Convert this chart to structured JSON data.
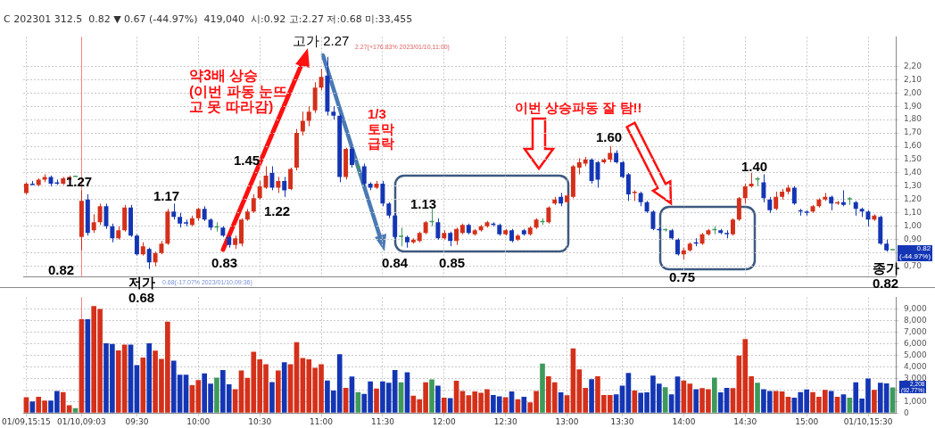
{
  "chart_data": [
    {
      "type": "candlestick",
      "title": "C 202301 312.5  0.82 ▼ 0.67 (-44.97%)  419,040  시:0.92 고:2.27 저:0.68 미:33,455",
      "categories": [
        "01/09,15:15",
        null,
        null,
        null,
        null,
        null,
        null,
        null,
        null,
        "01/10,09:03",
        null,
        null,
        null,
        null,
        null,
        null,
        null,
        null,
        "09:30",
        null,
        null,
        null,
        null,
        null,
        null,
        null,
        null,
        null,
        "10:00",
        null,
        null,
        null,
        null,
        null,
        null,
        null,
        null,
        null,
        "10:30",
        null,
        null,
        null,
        null,
        null,
        null,
        null,
        null,
        null,
        "11:00",
        null,
        null,
        null,
        null,
        null,
        null,
        null,
        null,
        null,
        "11:30",
        null,
        null,
        null,
        null,
        null,
        null,
        null,
        null,
        null,
        "12:00",
        null,
        null,
        null,
        null,
        null,
        null,
        null,
        null,
        null,
        "12:30",
        null,
        null,
        null,
        null,
        null,
        null,
        null,
        null,
        null,
        "13:00",
        null,
        null,
        null,
        null,
        null,
        null,
        null,
        null,
        "13:30",
        null,
        null,
        null,
        null,
        null,
        null,
        null,
        null,
        null,
        "14:00",
        null,
        null,
        null,
        null,
        null,
        null,
        null,
        null,
        null,
        "14:30",
        null,
        null,
        null,
        null,
        null,
        null,
        null,
        null,
        null,
        "15:00",
        null,
        null,
        null,
        null,
        null,
        null,
        null,
        null,
        null,
        "01/10,15:30",
        null,
        null,
        null,
        null
      ],
      "ohlc": [
        [
          1.25,
          1.33,
          1.24,
          1.32
        ],
        [
          1.32,
          1.34,
          1.31,
          1.31
        ],
        [
          1.31,
          1.36,
          1.3,
          1.35
        ],
        [
          1.35,
          1.39,
          1.33,
          1.37
        ],
        [
          1.37,
          1.38,
          1.3,
          1.32
        ],
        [
          1.33,
          1.35,
          1.31,
          1.32
        ],
        [
          1.32,
          1.37,
          1.31,
          1.36
        ],
        [
          1.35,
          1.38,
          1.34,
          1.37
        ],
        [
          1.37,
          1.37,
          1.37,
          1.37
        ],
        [
          0.92,
          1.27,
          0.82,
          1.19
        ],
        [
          1.2,
          1.24,
          0.93,
          0.95
        ],
        [
          0.97,
          1.09,
          0.95,
          1.03
        ],
        [
          1.03,
          1.17,
          1.01,
          1.15
        ],
        [
          1.15,
          1.17,
          0.98,
          1.0
        ],
        [
          1.0,
          1.02,
          0.88,
          0.91
        ],
        [
          0.91,
          1.0,
          0.9,
          0.97
        ],
        [
          0.97,
          1.16,
          0.96,
          1.14
        ],
        [
          1.14,
          1.16,
          0.92,
          0.93
        ],
        [
          0.93,
          0.94,
          0.78,
          0.79
        ],
        [
          0.79,
          0.88,
          0.78,
          0.85
        ],
        [
          0.83,
          0.84,
          0.68,
          0.73
        ],
        [
          0.73,
          0.81,
          0.7,
          0.8
        ],
        [
          0.8,
          0.89,
          0.79,
          0.87
        ],
        [
          0.87,
          1.13,
          0.86,
          1.11
        ],
        [
          1.11,
          1.17,
          1.05,
          1.07
        ],
        [
          1.07,
          1.1,
          0.99,
          1.02
        ],
        [
          1.03,
          1.05,
          1.0,
          1.02
        ],
        [
          1.01,
          1.08,
          1.0,
          1.06
        ],
        [
          1.06,
          1.14,
          1.04,
          1.13
        ],
        [
          1.13,
          1.15,
          1.04,
          1.05
        ],
        [
          1.05,
          1.06,
          0.97,
          0.99
        ],
        [
          0.99,
          1.03,
          0.96,
          0.99
        ],
        [
          0.99,
          1.0,
          0.92,
          0.93
        ],
        [
          0.92,
          0.93,
          0.84,
          0.86
        ],
        [
          0.86,
          0.93,
          0.83,
          0.91
        ],
        [
          0.87,
          1.06,
          0.85,
          1.05
        ],
        [
          1.05,
          1.13,
          1.04,
          1.11
        ],
        [
          1.11,
          1.24,
          1.1,
          1.21
        ],
        [
          1.21,
          1.34,
          1.2,
          1.3
        ],
        [
          1.29,
          1.45,
          1.28,
          1.38
        ],
        [
          1.4,
          1.45,
          1.27,
          1.29
        ],
        [
          1.29,
          1.37,
          1.25,
          1.34
        ],
        [
          1.34,
          1.37,
          1.22,
          1.27
        ],
        [
          1.28,
          1.44,
          1.27,
          1.43
        ],
        [
          1.44,
          1.73,
          1.42,
          1.7
        ],
        [
          1.71,
          1.86,
          1.68,
          1.79
        ],
        [
          1.79,
          1.9,
          1.75,
          1.86
        ],
        [
          1.87,
          2.08,
          1.85,
          2.04
        ],
        [
          2.04,
          2.18,
          2.02,
          2.12
        ],
        [
          2.13,
          2.27,
          1.83,
          1.86
        ],
        [
          1.86,
          1.9,
          1.8,
          1.83
        ],
        [
          1.83,
          1.84,
          1.33,
          1.37
        ],
        [
          1.37,
          1.59,
          1.35,
          1.58
        ],
        [
          1.58,
          1.6,
          1.44,
          1.46
        ],
        [
          1.44,
          1.48,
          1.4,
          1.44
        ],
        [
          1.45,
          1.47,
          1.3,
          1.32
        ],
        [
          1.32,
          1.33,
          1.27,
          1.29
        ],
        [
          1.29,
          1.34,
          1.28,
          1.32
        ],
        [
          1.32,
          1.34,
          1.15,
          1.17
        ],
        [
          1.17,
          1.18,
          1.06,
          1.08
        ],
        [
          1.08,
          1.1,
          0.9,
          0.92
        ],
        [
          0.92,
          0.99,
          0.85,
          0.92
        ],
        [
          0.92,
          0.93,
          0.84,
          0.88
        ],
        [
          0.88,
          0.91,
          0.87,
          0.9
        ],
        [
          0.89,
          0.96,
          0.88,
          0.95
        ],
        [
          0.95,
          1.04,
          0.94,
          1.03
        ],
        [
          1.03,
          1.13,
          1.0,
          1.03
        ],
        [
          1.03,
          1.06,
          0.9,
          0.91
        ],
        [
          0.91,
          0.97,
          0.9,
          0.95
        ],
        [
          0.95,
          0.96,
          0.85,
          0.89
        ],
        [
          0.89,
          0.99,
          0.86,
          0.98
        ],
        [
          0.95,
          1.02,
          0.94,
          1.01
        ],
        [
          1.01,
          1.02,
          0.94,
          0.95
        ],
        [
          0.94,
          0.98,
          0.93,
          0.97
        ],
        [
          0.97,
          1.01,
          0.96,
          1.0
        ],
        [
          1.0,
          1.04,
          0.99,
          1.03
        ],
        [
          1.02,
          1.03,
          1.0,
          1.01
        ],
        [
          1.01,
          1.02,
          0.93,
          0.94
        ],
        [
          0.94,
          0.98,
          0.93,
          0.97
        ],
        [
          0.97,
          0.98,
          0.88,
          0.89
        ],
        [
          0.9,
          0.94,
          0.89,
          0.93
        ],
        [
          0.97,
          0.98,
          0.93,
          0.94
        ],
        [
          0.94,
          1.0,
          0.93,
          0.99
        ],
        [
          0.99,
          1.06,
          0.98,
          1.05
        ],
        [
          1.03,
          1.06,
          1.01,
          1.03
        ],
        [
          1.03,
          1.15,
          1.02,
          1.14
        ],
        [
          1.17,
          1.22,
          1.16,
          1.2
        ],
        [
          1.22,
          1.25,
          1.15,
          1.17
        ],
        [
          1.18,
          1.25,
          1.17,
          1.23
        ],
        [
          1.22,
          1.46,
          1.21,
          1.45
        ],
        [
          1.44,
          1.51,
          1.39,
          1.48
        ],
        [
          1.47,
          1.52,
          1.45,
          1.5
        ],
        [
          1.5,
          1.51,
          1.32,
          1.34
        ],
        [
          1.48,
          1.49,
          1.29,
          1.35
        ],
        [
          1.48,
          1.51,
          1.47,
          1.5
        ],
        [
          1.5,
          1.6,
          1.48,
          1.55
        ],
        [
          1.55,
          1.57,
          1.47,
          1.48
        ],
        [
          1.48,
          1.49,
          1.36,
          1.37
        ],
        [
          1.39,
          1.4,
          1.19,
          1.24
        ],
        [
          1.25,
          1.27,
          1.19,
          1.26
        ],
        [
          1.25,
          1.26,
          1.15,
          1.18
        ],
        [
          1.18,
          1.19,
          1.1,
          1.11
        ],
        [
          1.11,
          1.12,
          0.97,
          0.98
        ],
        [
          0.98,
          0.99,
          0.95,
          0.97
        ],
        [
          0.97,
          0.98,
          0.96,
          0.97
        ],
        [
          0.97,
          0.98,
          0.9,
          0.91
        ],
        [
          0.9,
          0.91,
          0.78,
          0.79
        ],
        [
          0.79,
          0.84,
          0.75,
          0.82
        ],
        [
          0.82,
          0.88,
          0.81,
          0.87
        ],
        [
          0.88,
          0.91,
          0.85,
          0.87
        ],
        [
          0.87,
          0.95,
          0.86,
          0.94
        ],
        [
          0.94,
          0.98,
          0.93,
          0.97
        ],
        [
          0.97,
          1.0,
          0.94,
          0.97
        ],
        [
          0.97,
          0.98,
          0.94,
          0.95
        ],
        [
          0.95,
          0.97,
          0.91,
          0.94
        ],
        [
          0.94,
          1.06,
          0.93,
          1.05
        ],
        [
          1.05,
          1.22,
          1.04,
          1.21
        ],
        [
          1.21,
          1.32,
          1.17,
          1.3
        ],
        [
          1.3,
          1.4,
          1.29,
          1.32
        ],
        [
          1.35,
          1.37,
          1.3,
          1.35
        ],
        [
          1.33,
          1.39,
          1.18,
          1.21
        ],
        [
          1.2,
          1.22,
          1.1,
          1.12
        ],
        [
          1.13,
          1.26,
          1.12,
          1.22
        ],
        [
          1.22,
          1.28,
          1.2,
          1.26
        ],
        [
          1.26,
          1.31,
          1.24,
          1.29
        ],
        [
          1.29,
          1.3,
          1.16,
          1.17
        ],
        [
          1.12,
          1.13,
          1.08,
          1.11
        ],
        [
          1.11,
          1.12,
          1.08,
          1.1
        ],
        [
          1.11,
          1.16,
          1.1,
          1.15
        ],
        [
          1.15,
          1.21,
          1.14,
          1.2
        ],
        [
          1.2,
          1.25,
          1.19,
          1.22
        ],
        [
          1.22,
          1.23,
          1.12,
          1.17
        ],
        [
          1.17,
          1.19,
          1.16,
          1.18
        ],
        [
          1.18,
          1.27,
          1.15,
          1.16
        ],
        [
          1.2,
          1.22,
          1.16,
          1.2
        ],
        [
          1.18,
          1.19,
          1.08,
          1.13
        ],
        [
          1.13,
          1.14,
          1.07,
          1.11
        ],
        [
          1.11,
          1.12,
          1.0,
          1.05
        ],
        [
          1.05,
          1.09,
          1.04,
          1.08
        ],
        [
          1.07,
          1.08,
          0.86,
          0.87
        ],
        [
          0.87,
          0.9,
          0.81,
          0.82
        ],
        [
          0.82,
          0.82,
          0.82,
          0.82
        ]
      ],
      "colors": [
        "#d4301a",
        "#1436b4",
        "#d4301a",
        "#d4301a",
        "#1436b4",
        "#1436b4",
        "#d4301a",
        "#d4301a",
        "#3e9a5a",
        "#d4301a",
        "#1436b4",
        "#d4301a",
        "#d4301a",
        "#1436b4",
        "#1436b4",
        "#d4301a",
        "#d4301a",
        "#1436b4",
        "#1436b4",
        "#d4301a",
        "#1436b4",
        "#d4301a",
        "#d4301a",
        "#d4301a",
        "#1436b4",
        "#1436b4",
        "#1436b4",
        "#d4301a",
        "#d4301a",
        "#1436b4",
        "#1436b4",
        "#3e9a5a",
        "#1436b4",
        "#1436b4",
        "#d4301a",
        "#d4301a",
        "#d4301a",
        "#d4301a",
        "#d4301a",
        "#d4301a",
        "#1436b4",
        "#d4301a",
        "#1436b4",
        "#d4301a",
        "#d4301a",
        "#d4301a",
        "#d4301a",
        "#d4301a",
        "#d4301a",
        "#1436b4",
        "#1436b4",
        "#1436b4",
        "#d4301a",
        "#1436b4",
        "#3e9a5a",
        "#1436b4",
        "#1436b4",
        "#d4301a",
        "#1436b4",
        "#1436b4",
        "#1436b4",
        "#3e9a5a",
        "#1436b4",
        "#d4301a",
        "#d4301a",
        "#d4301a",
        "#3e9a5a",
        "#1436b4",
        "#d4301a",
        "#1436b4",
        "#d4301a",
        "#d4301a",
        "#1436b4",
        "#d4301a",
        "#d4301a",
        "#d4301a",
        "#1436b4",
        "#1436b4",
        "#d4301a",
        "#1436b4",
        "#d4301a",
        "#1436b4",
        "#d4301a",
        "#d4301a",
        "#3e9a5a",
        "#d4301a",
        "#d4301a",
        "#1436b4",
        "#d4301a",
        "#d4301a",
        "#d4301a",
        "#d4301a",
        "#1436b4",
        "#1436b4",
        "#d4301a",
        "#d4301a",
        "#1436b4",
        "#1436b4",
        "#1436b4",
        "#d4301a",
        "#1436b4",
        "#1436b4",
        "#1436b4",
        "#1436b4",
        "#3e9a5a",
        "#1436b4",
        "#1436b4",
        "#d4301a",
        "#d4301a",
        "#1436b4",
        "#d4301a",
        "#d4301a",
        "#3e9a5a",
        "#1436b4",
        "#1436b4",
        "#d4301a",
        "#d4301a",
        "#d4301a",
        "#d4301a",
        "#3e9a5a",
        "#1436b4",
        "#1436b4",
        "#d4301a",
        "#d4301a",
        "#d4301a",
        "#1436b4",
        "#1436b4",
        "#1436b4",
        "#d4301a",
        "#d4301a",
        "#d4301a",
        "#1436b4",
        "#d4301a",
        "#1436b4",
        "#3e9a5a",
        "#1436b4",
        "#1436b4",
        "#1436b4",
        "#d4301a",
        "#1436b4",
        "#1436b4",
        "#3e9a5a"
      ],
      "ylim": [
        0.62,
        2.42
      ],
      "yticks": [
        {
          "value": 0.7,
          "label": "0,70"
        },
        {
          "value": 0.8,
          "label": null
        },
        {
          "value": 0.9,
          "label": "0,90"
        },
        {
          "value": 1.0,
          "label": "1,00"
        },
        {
          "value": 1.1,
          "label": "1,10"
        },
        {
          "value": 1.2,
          "label": "1,20"
        },
        {
          "value": 1.3,
          "label": "1,30"
        },
        {
          "value": 1.4,
          "label": "1,40"
        },
        {
          "value": 1.5,
          "label": "1,50"
        },
        {
          "value": 1.6,
          "label": "1,60"
        },
        {
          "value": 1.7,
          "label": "1,70"
        },
        {
          "value": 1.8,
          "label": "1,80"
        },
        {
          "value": 1.9,
          "label": "1,90"
        },
        {
          "value": 2.0,
          "label": "2,00"
        },
        {
          "value": 2.1,
          "label": "2,10"
        },
        {
          "value": 2.2,
          "label": "2,20"
        }
      ],
      "grid": true,
      "tick_labels": "y",
      "ref_lines": [
        {
          "axis": "x",
          "value": "01/10,09:03",
          "color": "#ff7b7b"
        }
      ],
      "annotations": [
        "고가 2.27",
        "2.27(+176.83% 2023/01/10,11:00)",
        "약3배 상승\n(이번 파동 눈뜨\n고 못 따라감)",
        "1/3\n토막\n급락",
        "이번 상승파동 잘 탐!!",
        "1.27",
        "1.17",
        "1.45",
        "1.22",
        "1.13",
        "1.60",
        "1.40",
        "0.82",
        "0.83",
        "0.84",
        "0.85",
        "0.75",
        "저가\n0.68",
        "0.68(-17.07% 2023/01/10,09:36)",
        "종가\n0.82",
        "0.82\n(-44.97%)"
      ]
    },
    {
      "type": "bar",
      "categories": [
        "01/09,15:15",
        null,
        null,
        null,
        null,
        null,
        null,
        null,
        null,
        "01/10,09:03",
        null,
        null,
        null,
        null,
        null,
        null,
        null,
        null,
        "09:30",
        null,
        null,
        null,
        null,
        null,
        null,
        null,
        null,
        null,
        "10:00",
        null,
        null,
        null,
        null,
        null,
        null,
        null,
        null,
        null,
        "10:30",
        null,
        null,
        null,
        null,
        null,
        null,
        null,
        null,
        null,
        "11:00",
        null,
        null,
        null,
        null,
        null,
        null,
        null,
        null,
        null,
        "11:30",
        null,
        null,
        null,
        null,
        null,
        null,
        null,
        null,
        null,
        "12:00",
        null,
        null,
        null,
        null,
        null,
        null,
        null,
        null,
        null,
        "12:30",
        null,
        null,
        null,
        null,
        null,
        null,
        null,
        null,
        null,
        "13:00",
        null,
        null,
        null,
        null,
        null,
        null,
        null,
        null,
        "13:30",
        null,
        null,
        null,
        null,
        null,
        null,
        null,
        null,
        null,
        "14:00",
        null,
        null,
        null,
        null,
        null,
        null,
        null,
        null,
        null,
        "14:30",
        null,
        null,
        null,
        null,
        null,
        null,
        null,
        null,
        null,
        "15:00",
        null,
        null,
        null,
        null,
        null,
        null,
        null,
        null,
        null,
        "01/10,15:30",
        null,
        null,
        null,
        null
      ],
      "values": [
        1360,
        990,
        1410,
        1070,
        1070,
        1910,
        1810,
        670,
        420,
        8110,
        8110,
        9250,
        9000,
        6030,
        5960,
        5410,
        5900,
        5900,
        4140,
        4790,
        6030,
        5380,
        4670,
        7890,
        4520,
        3300,
        3300,
        2410,
        2850,
        3420,
        2530,
        3050,
        3720,
        2480,
        2060,
        3670,
        3030,
        5290,
        4640,
        4220,
        2680,
        3670,
        4390,
        4220,
        6130,
        4760,
        4640,
        3900,
        4220,
        2800,
        1940,
        5090,
        2180,
        3150,
        1810,
        1660,
        2730,
        2110,
        2730,
        2610,
        3720,
        2660,
        3520,
        1490,
        1190,
        2660,
        2900,
        2360,
        1320,
        1290,
        2780,
        1910,
        1540,
        1860,
        1740,
        2060,
        1560,
        1440,
        1360,
        1860,
        1190,
        1410,
        920,
        1910,
        4270,
        3180,
        2660,
        1790,
        1540,
        5580,
        3770,
        2180,
        2930,
        3180,
        1560,
        1560,
        1610,
        2360,
        3470,
        1940,
        1740,
        1790,
        3230,
        2530,
        2230,
        1610,
        3150,
        2800,
        2530,
        2060,
        2160,
        2060,
        3050,
        1790,
        2180,
        2160,
        4960,
        6400,
        3180,
        2610,
        2060,
        1910,
        1910,
        1860,
        1410,
        1320,
        1810,
        2030,
        1810,
        1410,
        1990,
        1910,
        1410,
        1610,
        1320,
        2660,
        1240,
        2980,
        1990,
        2610,
        2560,
        2208
      ],
      "colors": [
        "#d4301a",
        "#1436b4",
        "#d4301a",
        "#d4301a",
        "#1436b4",
        "#1436b4",
        "#d4301a",
        "#d4301a",
        "#3e9a5a",
        "#d4301a",
        "#1436b4",
        "#d4301a",
        "#d4301a",
        "#1436b4",
        "#1436b4",
        "#d4301a",
        "#d4301a",
        "#1436b4",
        "#1436b4",
        "#d4301a",
        "#1436b4",
        "#d4301a",
        "#d4301a",
        "#d4301a",
        "#1436b4",
        "#1436b4",
        "#1436b4",
        "#d4301a",
        "#d4301a",
        "#1436b4",
        "#1436b4",
        "#3e9a5a",
        "#1436b4",
        "#1436b4",
        "#d4301a",
        "#d4301a",
        "#d4301a",
        "#d4301a",
        "#d4301a",
        "#d4301a",
        "#1436b4",
        "#d4301a",
        "#1436b4",
        "#d4301a",
        "#d4301a",
        "#d4301a",
        "#d4301a",
        "#d4301a",
        "#d4301a",
        "#1436b4",
        "#1436b4",
        "#1436b4",
        "#d4301a",
        "#1436b4",
        "#3e9a5a",
        "#1436b4",
        "#1436b4",
        "#d4301a",
        "#1436b4",
        "#1436b4",
        "#1436b4",
        "#3e9a5a",
        "#1436b4",
        "#d4301a",
        "#d4301a",
        "#d4301a",
        "#3e9a5a",
        "#1436b4",
        "#d4301a",
        "#1436b4",
        "#d4301a",
        "#d4301a",
        "#d4301a",
        "#d4301a",
        "#d4301a",
        "#d4301a",
        "#1436b4",
        "#1436b4",
        "#d4301a",
        "#1436b4",
        "#d4301a",
        "#1436b4",
        "#d4301a",
        "#d4301a",
        "#3e9a5a",
        "#d4301a",
        "#d4301a",
        "#1436b4",
        "#d4301a",
        "#d4301a",
        "#d4301a",
        "#d4301a",
        "#1436b4",
        "#d4301a",
        "#d4301a",
        "#d4301a",
        "#1436b4",
        "#1436b4",
        "#1436b4",
        "#d4301a",
        "#1436b4",
        "#1436b4",
        "#1436b4",
        "#1436b4",
        "#3e9a5a",
        "#1436b4",
        "#1436b4",
        "#d4301a",
        "#d4301a",
        "#1436b4",
        "#d4301a",
        "#d4301a",
        "#3e9a5a",
        "#1436b4",
        "#1436b4",
        "#d4301a",
        "#d4301a",
        "#d4301a",
        "#d4301a",
        "#3e9a5a",
        "#1436b4",
        "#1436b4",
        "#d4301a",
        "#d4301a",
        "#d4301a",
        "#1436b4",
        "#1436b4",
        "#1436b4",
        "#d4301a",
        "#d4301a",
        "#d4301a",
        "#1436b4",
        "#d4301a",
        "#1436b4",
        "#3e9a5a",
        "#1436b4",
        "#1436b4",
        "#1436b4",
        "#d4301a",
        "#1436b4",
        "#1436b4",
        "#3e9a5a"
      ],
      "ylim": [
        0,
        10000
      ],
      "yticks": [
        0,
        {
          "value": 1000,
          "label": "1,000"
        },
        {
          "value": 2000,
          "label": null
        },
        {
          "value": 3000,
          "label": "3,000"
        },
        {
          "value": 4000,
          "label": "4,000"
        },
        {
          "value": 5000,
          "label": "5,000"
        },
        {
          "value": 6000,
          "label": "6,000"
        },
        {
          "value": 7000,
          "label": "7,000"
        },
        {
          "value": 8000,
          "label": "8,000"
        },
        {
          "value": 9000,
          "label": "9,000"
        }
      ],
      "grid": true,
      "ref_lines": [
        {
          "axis": "x",
          "value": "01/10,09:03",
          "color": "#ff7b7b"
        }
      ],
      "annotations": [
        "2,208\n(92.77%)"
      ]
    }
  ]
}
